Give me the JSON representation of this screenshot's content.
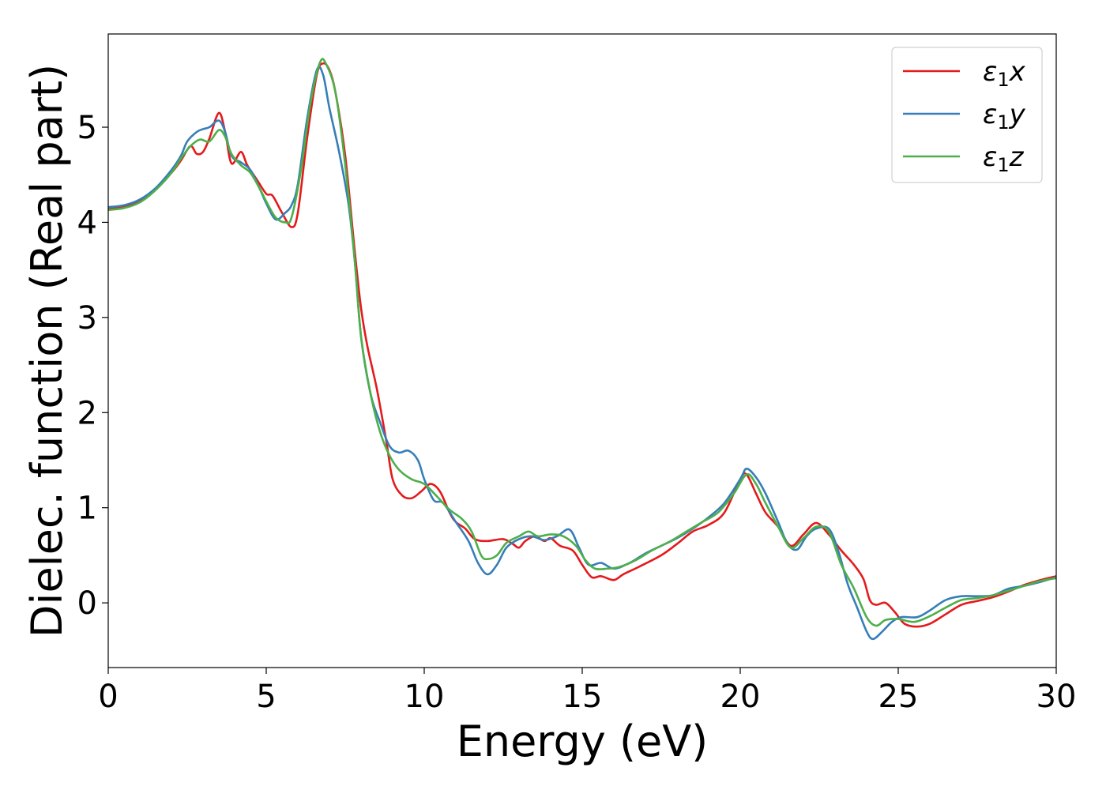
{
  "chart_data": {
    "type": "line",
    "title": "",
    "xlabel": "Energy (eV)",
    "ylabel": "Dielec. function (Real part)",
    "xlim": [
      0,
      30
    ],
    "ylim": [
      -0.68,
      5.98
    ],
    "x_ticks": [
      0,
      5,
      10,
      15,
      20,
      25,
      30
    ],
    "y_ticks": [
      0,
      1,
      2,
      3,
      4,
      5
    ],
    "grid": false,
    "legend_position": "top-right",
    "series": [
      {
        "name": "ε1x",
        "legend_main": "ε",
        "legend_sub": "1",
        "legend_suffix": "x",
        "color": "#e41a1c",
        "points": [
          [
            0,
            4.14
          ],
          [
            0.5,
            4.16
          ],
          [
            1,
            4.22
          ],
          [
            1.5,
            4.35
          ],
          [
            2,
            4.52
          ],
          [
            2.3,
            4.65
          ],
          [
            2.6,
            4.8
          ],
          [
            2.8,
            4.72
          ],
          [
            3.0,
            4.74
          ],
          [
            3.2,
            4.88
          ],
          [
            3.5,
            5.15
          ],
          [
            3.7,
            4.95
          ],
          [
            3.9,
            4.62
          ],
          [
            4.2,
            4.74
          ],
          [
            4.4,
            4.6
          ],
          [
            4.7,
            4.45
          ],
          [
            5.0,
            4.3
          ],
          [
            5.2,
            4.28
          ],
          [
            5.5,
            4.1
          ],
          [
            5.8,
            3.95
          ],
          [
            6.0,
            4.1
          ],
          [
            6.3,
            4.9
          ],
          [
            6.6,
            5.55
          ],
          [
            6.8,
            5.67
          ],
          [
            7.0,
            5.6
          ],
          [
            7.2,
            5.35
          ],
          [
            7.5,
            4.7
          ],
          [
            7.8,
            3.7
          ],
          [
            8.0,
            3.1
          ],
          [
            8.2,
            2.7
          ],
          [
            8.5,
            2.25
          ],
          [
            8.8,
            1.7
          ],
          [
            9.0,
            1.3
          ],
          [
            9.3,
            1.13
          ],
          [
            9.6,
            1.1
          ],
          [
            9.9,
            1.17
          ],
          [
            10.2,
            1.25
          ],
          [
            10.5,
            1.17
          ],
          [
            10.8,
            0.95
          ],
          [
            11.0,
            0.85
          ],
          [
            11.3,
            0.78
          ],
          [
            11.6,
            0.67
          ],
          [
            12.0,
            0.65
          ],
          [
            12.5,
            0.67
          ],
          [
            12.8,
            0.62
          ],
          [
            13.0,
            0.58
          ],
          [
            13.2,
            0.65
          ],
          [
            13.5,
            0.7
          ],
          [
            13.8,
            0.65
          ],
          [
            14.0,
            0.68
          ],
          [
            14.3,
            0.6
          ],
          [
            14.7,
            0.55
          ],
          [
            15.0,
            0.4
          ],
          [
            15.3,
            0.27
          ],
          [
            15.6,
            0.28
          ],
          [
            16.0,
            0.24
          ],
          [
            16.3,
            0.3
          ],
          [
            16.8,
            0.38
          ],
          [
            17.5,
            0.5
          ],
          [
            18.0,
            0.62
          ],
          [
            18.5,
            0.75
          ],
          [
            19.0,
            0.82
          ],
          [
            19.5,
            0.95
          ],
          [
            20.0,
            1.3
          ],
          [
            20.2,
            1.35
          ],
          [
            20.5,
            1.15
          ],
          [
            20.8,
            0.95
          ],
          [
            21.2,
            0.8
          ],
          [
            21.6,
            0.6
          ],
          [
            22.0,
            0.72
          ],
          [
            22.4,
            0.84
          ],
          [
            22.8,
            0.72
          ],
          [
            23.2,
            0.55
          ],
          [
            23.6,
            0.4
          ],
          [
            23.9,
            0.25
          ],
          [
            24.1,
            0.03
          ],
          [
            24.3,
            -0.02
          ],
          [
            24.6,
            0.0
          ],
          [
            24.9,
            -0.1
          ],
          [
            25.2,
            -0.22
          ],
          [
            25.6,
            -0.25
          ],
          [
            26.0,
            -0.22
          ],
          [
            26.5,
            -0.12
          ],
          [
            27.0,
            -0.02
          ],
          [
            27.5,
            0.02
          ],
          [
            28.0,
            0.06
          ],
          [
            28.5,
            0.12
          ],
          [
            29.0,
            0.19
          ],
          [
            29.5,
            0.24
          ],
          [
            30.0,
            0.28
          ]
        ]
      },
      {
        "name": "ε1y",
        "legend_main": "ε",
        "legend_sub": "1",
        "legend_suffix": "y",
        "color": "#377eb8",
        "points": [
          [
            0,
            4.16
          ],
          [
            0.5,
            4.18
          ],
          [
            1,
            4.24
          ],
          [
            1.5,
            4.36
          ],
          [
            2,
            4.55
          ],
          [
            2.3,
            4.7
          ],
          [
            2.5,
            4.85
          ],
          [
            2.8,
            4.95
          ],
          [
            3.0,
            4.98
          ],
          [
            3.2,
            5.0
          ],
          [
            3.5,
            5.07
          ],
          [
            3.7,
            4.95
          ],
          [
            3.9,
            4.7
          ],
          [
            4.2,
            4.63
          ],
          [
            4.5,
            4.55
          ],
          [
            4.8,
            4.35
          ],
          [
            5.0,
            4.2
          ],
          [
            5.3,
            4.03
          ],
          [
            5.6,
            4.1
          ],
          [
            5.8,
            4.18
          ],
          [
            6.0,
            4.4
          ],
          [
            6.3,
            5.1
          ],
          [
            6.6,
            5.6
          ],
          [
            6.8,
            5.55
          ],
          [
            7.0,
            5.2
          ],
          [
            7.3,
            4.75
          ],
          [
            7.6,
            4.2
          ],
          [
            7.8,
            3.6
          ],
          [
            8.0,
            2.8
          ],
          [
            8.3,
            2.2
          ],
          [
            8.6,
            1.9
          ],
          [
            8.9,
            1.65
          ],
          [
            9.2,
            1.58
          ],
          [
            9.5,
            1.6
          ],
          [
            9.8,
            1.5
          ],
          [
            10.0,
            1.3
          ],
          [
            10.3,
            1.08
          ],
          [
            10.6,
            1.05
          ],
          [
            11.0,
            0.85
          ],
          [
            11.4,
            0.65
          ],
          [
            11.7,
            0.42
          ],
          [
            12.0,
            0.3
          ],
          [
            12.3,
            0.4
          ],
          [
            12.6,
            0.58
          ],
          [
            13.0,
            0.67
          ],
          [
            13.4,
            0.7
          ],
          [
            13.8,
            0.66
          ],
          [
            14.2,
            0.7
          ],
          [
            14.6,
            0.77
          ],
          [
            14.9,
            0.58
          ],
          [
            15.2,
            0.4
          ],
          [
            15.6,
            0.42
          ],
          [
            16.0,
            0.36
          ],
          [
            16.5,
            0.42
          ],
          [
            17.0,
            0.52
          ],
          [
            17.5,
            0.6
          ],
          [
            18.0,
            0.68
          ],
          [
            18.5,
            0.78
          ],
          [
            19.0,
            0.9
          ],
          [
            19.5,
            1.05
          ],
          [
            20.0,
            1.3
          ],
          [
            20.2,
            1.41
          ],
          [
            20.5,
            1.32
          ],
          [
            20.8,
            1.15
          ],
          [
            21.2,
            0.85
          ],
          [
            21.5,
            0.62
          ],
          [
            21.8,
            0.56
          ],
          [
            22.1,
            0.7
          ],
          [
            22.4,
            0.78
          ],
          [
            22.8,
            0.78
          ],
          [
            23.1,
            0.55
          ],
          [
            23.4,
            0.2
          ],
          [
            23.7,
            -0.05
          ],
          [
            24.0,
            -0.3
          ],
          [
            24.2,
            -0.38
          ],
          [
            24.5,
            -0.3
          ],
          [
            24.8,
            -0.2
          ],
          [
            25.1,
            -0.15
          ],
          [
            25.6,
            -0.15
          ],
          [
            26.0,
            -0.08
          ],
          [
            26.5,
            0.03
          ],
          [
            27.0,
            0.07
          ],
          [
            27.5,
            0.07
          ],
          [
            28.0,
            0.08
          ],
          [
            28.5,
            0.15
          ],
          [
            29.0,
            0.18
          ],
          [
            29.5,
            0.22
          ],
          [
            30.0,
            0.27
          ]
        ]
      },
      {
        "name": "ε1z",
        "legend_main": "ε",
        "legend_sub": "1",
        "legend_suffix": "z",
        "color": "#4daf4a",
        "points": [
          [
            0,
            4.13
          ],
          [
            0.5,
            4.15
          ],
          [
            1,
            4.21
          ],
          [
            1.5,
            4.34
          ],
          [
            2,
            4.52
          ],
          [
            2.3,
            4.67
          ],
          [
            2.6,
            4.8
          ],
          [
            2.9,
            4.87
          ],
          [
            3.2,
            4.85
          ],
          [
            3.5,
            4.97
          ],
          [
            3.7,
            4.9
          ],
          [
            3.9,
            4.72
          ],
          [
            4.2,
            4.6
          ],
          [
            4.5,
            4.52
          ],
          [
            4.8,
            4.35
          ],
          [
            5.0,
            4.22
          ],
          [
            5.3,
            4.05
          ],
          [
            5.6,
            4.0
          ],
          [
            5.8,
            4.05
          ],
          [
            6.1,
            4.55
          ],
          [
            6.4,
            5.25
          ],
          [
            6.7,
            5.68
          ],
          [
            6.9,
            5.66
          ],
          [
            7.2,
            5.35
          ],
          [
            7.5,
            4.6
          ],
          [
            7.8,
            3.6
          ],
          [
            8.0,
            2.8
          ],
          [
            8.3,
            2.2
          ],
          [
            8.6,
            1.8
          ],
          [
            8.9,
            1.55
          ],
          [
            9.2,
            1.4
          ],
          [
            9.6,
            1.3
          ],
          [
            10.0,
            1.25
          ],
          [
            10.4,
            1.12
          ],
          [
            10.8,
            0.98
          ],
          [
            11.2,
            0.88
          ],
          [
            11.5,
            0.75
          ],
          [
            11.8,
            0.5
          ],
          [
            12.0,
            0.46
          ],
          [
            12.3,
            0.5
          ],
          [
            12.6,
            0.63
          ],
          [
            13.0,
            0.7
          ],
          [
            13.3,
            0.75
          ],
          [
            13.6,
            0.7
          ],
          [
            14.0,
            0.72
          ],
          [
            14.4,
            0.7
          ],
          [
            14.8,
            0.6
          ],
          [
            15.1,
            0.45
          ],
          [
            15.4,
            0.36
          ],
          [
            15.8,
            0.36
          ],
          [
            16.2,
            0.38
          ],
          [
            16.7,
            0.45
          ],
          [
            17.2,
            0.55
          ],
          [
            17.8,
            0.65
          ],
          [
            18.3,
            0.75
          ],
          [
            18.8,
            0.85
          ],
          [
            19.3,
            0.95
          ],
          [
            19.8,
            1.15
          ],
          [
            20.2,
            1.35
          ],
          [
            20.5,
            1.25
          ],
          [
            20.8,
            1.05
          ],
          [
            21.2,
            0.8
          ],
          [
            21.6,
            0.58
          ],
          [
            22.0,
            0.68
          ],
          [
            22.4,
            0.8
          ],
          [
            22.8,
            0.75
          ],
          [
            23.2,
            0.4
          ],
          [
            23.6,
            0.15
          ],
          [
            24.0,
            -0.15
          ],
          [
            24.3,
            -0.24
          ],
          [
            24.6,
            -0.18
          ],
          [
            25.0,
            -0.17
          ],
          [
            25.5,
            -0.2
          ],
          [
            26.0,
            -0.14
          ],
          [
            26.5,
            -0.05
          ],
          [
            27.0,
            0.03
          ],
          [
            27.5,
            0.05
          ],
          [
            28.0,
            0.08
          ],
          [
            28.5,
            0.13
          ],
          [
            29.0,
            0.18
          ],
          [
            29.5,
            0.23
          ],
          [
            30.0,
            0.26
          ]
        ]
      }
    ]
  }
}
